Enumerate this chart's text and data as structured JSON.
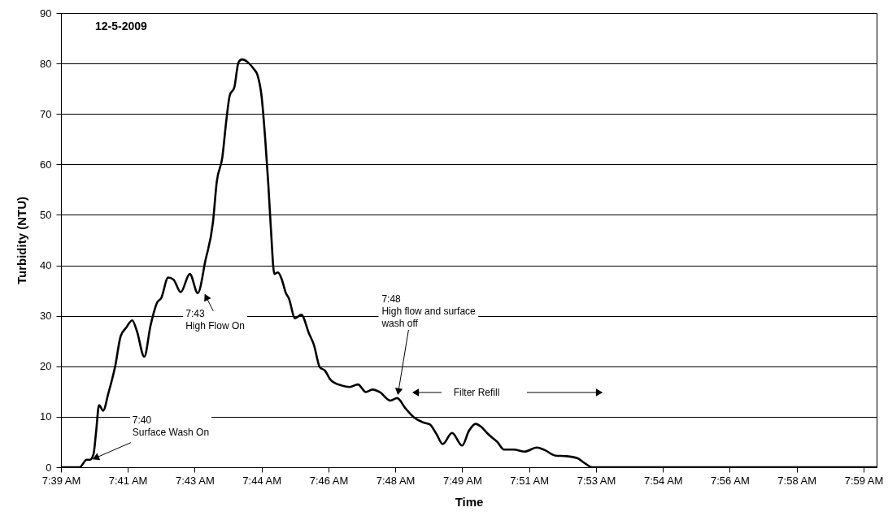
{
  "chart_data": {
    "type": "line",
    "title": "12-5-2009",
    "xlabel": "Time",
    "ylabel": "Turbidity (NTU)",
    "x": [
      7.6556,
      7.6633,
      7.6663,
      7.6677,
      7.6691,
      7.6702,
      7.6714,
      7.6731,
      7.6753,
      7.6781,
      7.6804,
      7.6826,
      7.6852,
      7.6871,
      7.6902,
      7.6928,
      7.6956,
      7.6972,
      7.7001,
      7.7023,
      7.7053,
      7.7091,
      7.7124,
      7.7156,
      7.7187,
      7.7203,
      7.7226,
      7.7243,
      7.7257,
      7.7276,
      7.7293,
      7.7308,
      7.7333,
      7.7355,
      7.7372,
      7.7389,
      7.7404,
      7.7417,
      7.7428,
      7.7442,
      7.7457,
      7.7473,
      7.749,
      7.7502,
      7.7528,
      7.7554,
      7.7586,
      7.7606,
      7.7631,
      7.7651,
      7.7676,
      7.7721,
      7.7755,
      7.7789,
      7.7822,
      7.785,
      7.7879,
      7.7924,
      7.7952,
      7.7986,
      7.8019,
      7.8059,
      7.8087,
      7.8115,
      7.8141,
      7.818,
      7.8222,
      7.825,
      7.8278,
      7.8301,
      7.8329,
      7.8368,
      7.8396,
      7.8436,
      7.8481,
      7.8532,
      7.8565,
      7.861,
      7.8655,
      7.87,
      7.8734,
      7.8762,
      7.9943
    ],
    "series": [
      {
        "color": "#000000",
        "values": [
          0,
          0,
          1.5,
          1.5,
          2.6,
          7.1,
          12.3,
          11.2,
          14.7,
          20,
          26,
          27.6,
          29.1,
          27,
          21.9,
          28.1,
          32.7,
          33.5,
          37.6,
          37.2,
          34.7,
          38.3,
          34.5,
          41,
          48.5,
          56.6,
          61.4,
          68.9,
          73.7,
          75.3,
          80.2,
          80.8,
          80.2,
          79,
          77.7,
          73.5,
          65.1,
          56,
          47,
          38.3,
          38.6,
          37.2,
          34.5,
          33.5,
          29.5,
          30.2,
          26.5,
          24.3,
          19.8,
          19.2,
          17.3,
          16.2,
          15.9,
          16.4,
          14.9,
          15.4,
          14.9,
          13.2,
          13.7,
          11.7,
          10,
          8.9,
          8.5,
          6.6,
          4.6,
          6.8,
          4.3,
          7.2,
          8.6,
          8,
          6.6,
          5,
          3.5,
          3.5,
          3.1,
          3.9,
          3.4,
          2.3,
          2.2,
          1.8,
          0.7,
          0,
          0
        ]
      }
    ],
    "xlim": [
      7.6556,
      7.9943
    ],
    "xticks": [
      {
        "value": 7.6556,
        "label": "7:39 AM"
      },
      {
        "value": 7.6833,
        "label": "7:41 AM"
      },
      {
        "value": 7.7111,
        "label": "7:43 AM"
      },
      {
        "value": 7.7389,
        "label": "7:44 AM"
      },
      {
        "value": 7.7667,
        "label": "7:46 AM"
      },
      {
        "value": 7.7944,
        "label": "7:48 AM"
      },
      {
        "value": 7.8222,
        "label": "7:49 AM"
      },
      {
        "value": 7.85,
        "label": "7:51 AM"
      },
      {
        "value": 7.8778,
        "label": "7:53 AM"
      },
      {
        "value": 7.9056,
        "label": "7:54 AM"
      },
      {
        "value": 7.9333,
        "label": "7:56 AM"
      },
      {
        "value": 7.9611,
        "label": "7:58 AM"
      },
      {
        "value": 7.9889,
        "label": "7:59 AM"
      }
    ],
    "ylim": [
      0,
      90
    ],
    "yticks": [
      0,
      10,
      20,
      30,
      40,
      50,
      60,
      70,
      80,
      90
    ],
    "grid": "y",
    "line_style": "solid",
    "annotations": [
      {
        "text": "7:40\nSurface Wash On",
        "x": 7.6677,
        "y": 1.5
      },
      {
        "text": "7:43\nHigh Flow On",
        "x": 7.7124,
        "y": 34.5
      },
      {
        "text": "7:48\nHigh flow and surface\nwash off",
        "x": 7.7952,
        "y": 13.7
      },
      "Filter Refill"
    ]
  }
}
